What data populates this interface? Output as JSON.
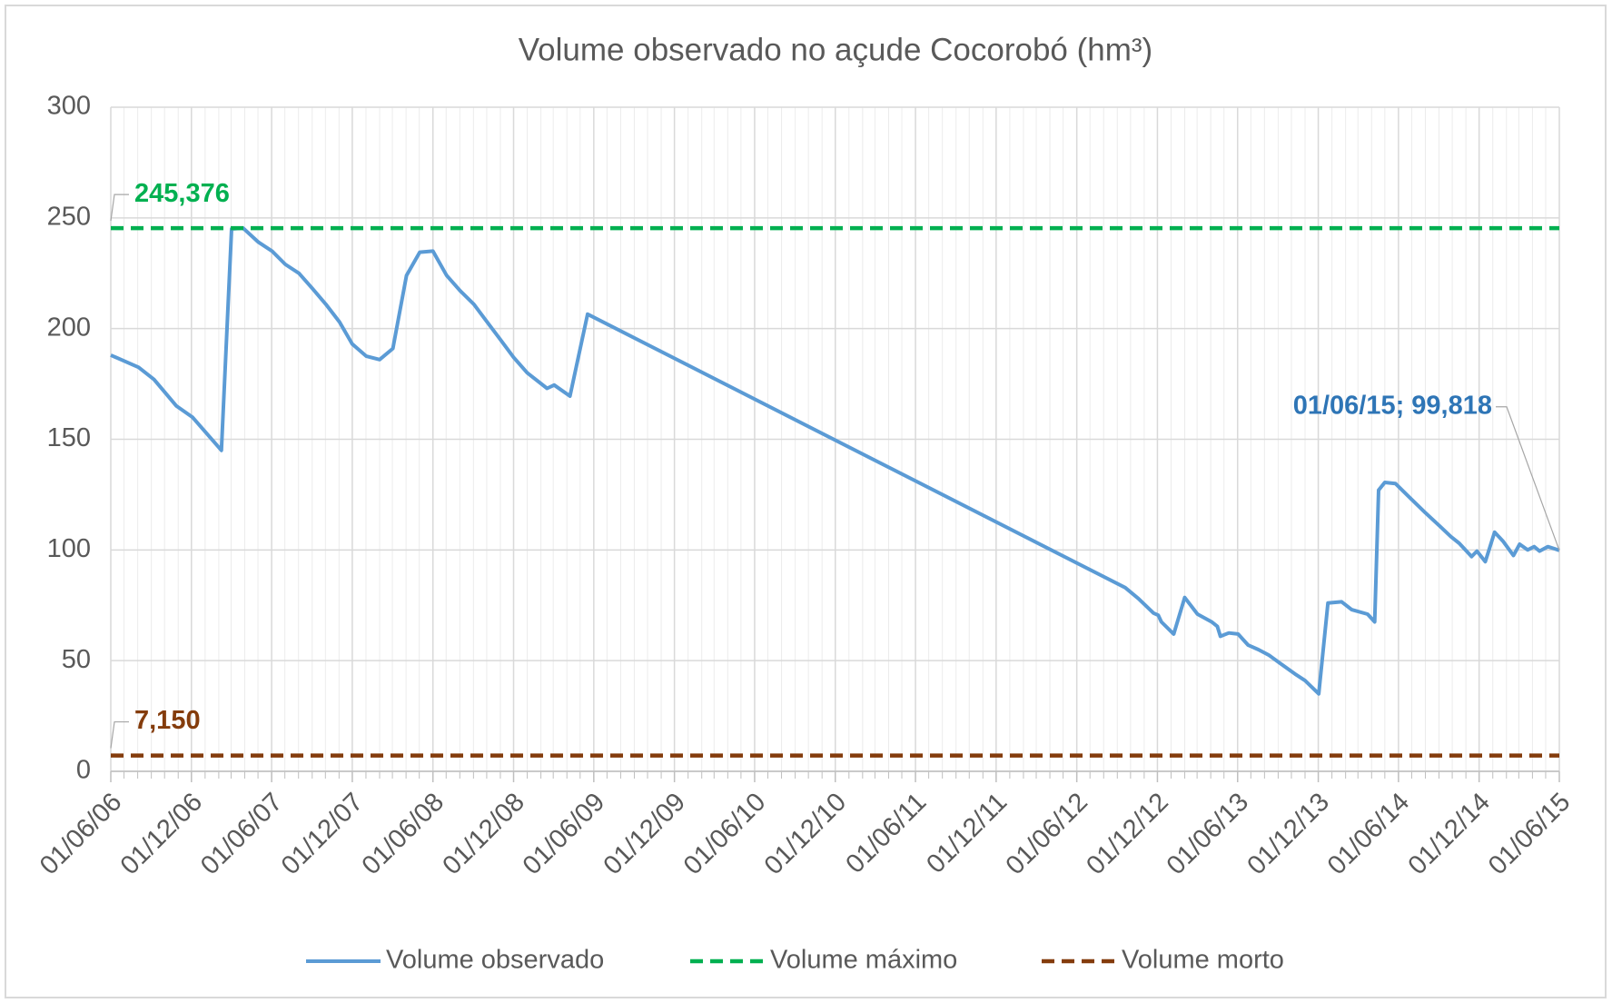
{
  "chart_data": {
    "type": "line",
    "title": "Volume observado no açude Cocorobó (hm³)",
    "xlim": [
      "2006-06-01",
      "2015-06-01"
    ],
    "xticks": [
      {
        "value": "2006-06-01",
        "label": "01/06/06"
      },
      {
        "value": "2006-12-01",
        "label": "01/12/06"
      },
      {
        "value": "2007-06-01",
        "label": "01/06/07"
      },
      {
        "value": "2007-12-01",
        "label": "01/12/07"
      },
      {
        "value": "2008-06-01",
        "label": "01/06/08"
      },
      {
        "value": "2008-12-01",
        "label": "01/12/08"
      },
      {
        "value": "2009-06-01",
        "label": "01/06/09"
      },
      {
        "value": "2009-12-01",
        "label": "01/12/09"
      },
      {
        "value": "2010-06-01",
        "label": "01/06/10"
      },
      {
        "value": "2010-12-01",
        "label": "01/12/10"
      },
      {
        "value": "2011-06-01",
        "label": "01/06/11"
      },
      {
        "value": "2011-12-01",
        "label": "01/12/11"
      },
      {
        "value": "2012-06-01",
        "label": "01/06/12"
      },
      {
        "value": "2012-12-01",
        "label": "01/12/12"
      },
      {
        "value": "2013-06-01",
        "label": "01/06/13"
      },
      {
        "value": "2013-12-01",
        "label": "01/12/13"
      },
      {
        "value": "2014-06-01",
        "label": "01/06/14"
      },
      {
        "value": "2014-12-01",
        "label": "01/12/14"
      },
      {
        "value": "2015-06-01",
        "label": "01/06/15"
      }
    ],
    "ylim": [
      0,
      300
    ],
    "yticks": [
      0,
      50,
      100,
      150,
      200,
      250,
      300
    ],
    "grid": true,
    "legend": "bottom",
    "series": [
      {
        "name": "Volume observado",
        "color": "#5b9bd5",
        "dash": false,
        "x": [
          "2006-06-01",
          "2006-08-03",
          "2006-09-07",
          "2006-10-28",
          "2006-12-03",
          "2007-02-07",
          "2007-03-02",
          "2007-03-28",
          "2007-05-02",
          "2007-06-02",
          "2007-07-02",
          "2007-08-02",
          "2007-09-02",
          "2007-10-02",
          "2007-11-02",
          "2007-12-01",
          "2008-01-02",
          "2008-02-01",
          "2008-03-02",
          "2008-04-02",
          "2008-05-02",
          "2008-06-01",
          "2008-07-02",
          "2008-08-02",
          "2008-09-02",
          "2008-10-02",
          "2008-11-01",
          "2008-12-01",
          "2009-01-01",
          "2009-02-15",
          "2009-03-03",
          "2009-04-08",
          "2009-05-18",
          "2012-09-19",
          "2012-10-19",
          "2012-11-22",
          "2012-12-03",
          "2012-12-10",
          "2013-01-07",
          "2013-02-01",
          "2013-03-02",
          "2013-04-04",
          "2013-04-16",
          "2013-04-23",
          "2013-05-12",
          "2013-06-02",
          "2013-06-25",
          "2013-07-18",
          "2013-08-11",
          "2013-09-04",
          "2013-10-09",
          "2013-11-01",
          "2013-12-02",
          "2013-12-23",
          "2014-01-23",
          "2014-02-15",
          "2014-03-23",
          "2014-04-08",
          "2014-04-17",
          "2014-05-01",
          "2014-05-25",
          "2014-06-25",
          "2014-07-31",
          "2014-09-04",
          "2014-09-28",
          "2014-10-17",
          "2014-11-14",
          "2014-11-26",
          "2014-12-15",
          "2015-01-05",
          "2015-01-24",
          "2015-02-17",
          "2015-03-03",
          "2015-03-21",
          "2015-04-05",
          "2015-04-17",
          "2015-05-06",
          "2015-05-22",
          "2015-06-01"
        ],
        "values": [
          188,
          182.5,
          177,
          165,
          160,
          145,
          245,
          245.4,
          239,
          235,
          229,
          225,
          218,
          211,
          203,
          193,
          187.5,
          186,
          191,
          224,
          234.5,
          235,
          224,
          217,
          211,
          203,
          195,
          187,
          180,
          173,
          174.5,
          169.5,
          206.5,
          83,
          78,
          71.5,
          70.5,
          67.5,
          62,
          78.5,
          71,
          67.4,
          65.5,
          61,
          62.5,
          62,
          57,
          55,
          52.5,
          49,
          44,
          41,
          35,
          76,
          76.6,
          73,
          71,
          67.5,
          127,
          130.5,
          130,
          124,
          117,
          110.5,
          106,
          103,
          97,
          99.5,
          94.7,
          108,
          104,
          97.5,
          102.6,
          100,
          101.5,
          99.5,
          101.5,
          100.5,
          99.818
        ]
      },
      {
        "name": "Volume máximo",
        "color": "#00b050",
        "dash": true,
        "x": [
          "2006-06-01",
          "2015-06-01"
        ],
        "values": [
          245.376,
          245.376
        ]
      },
      {
        "name": "Volume morto",
        "color": "#843c0c",
        "dash": true,
        "x": [
          "2006-06-01",
          "2015-06-01"
        ],
        "values": [
          7.15,
          7.15
        ]
      }
    ],
    "annotations": [
      {
        "label": "245,376",
        "x": "2006-06-01",
        "value": 245.376,
        "color": "#00b050"
      },
      {
        "label": "7,150",
        "x": "2006-06-01",
        "value": 7.15,
        "color": "#843c0c"
      },
      {
        "label": "01/06/15; 99,818",
        "x": "2015-06-01",
        "value": 99.818,
        "color": "#2e75b6"
      }
    ]
  }
}
